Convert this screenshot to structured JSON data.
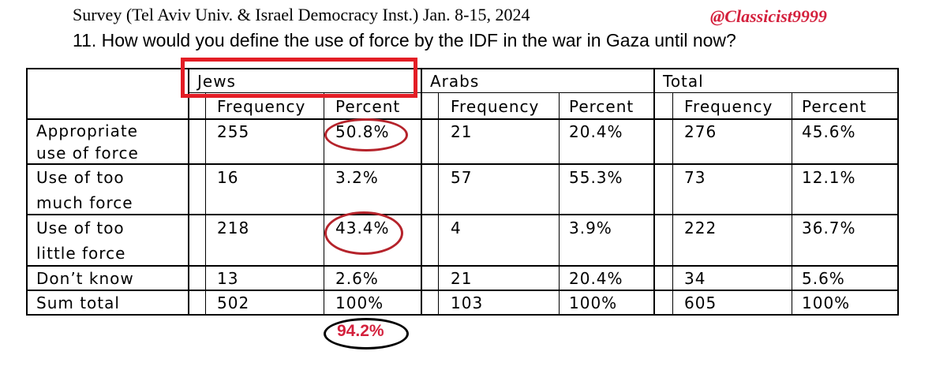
{
  "source": "Survey (Tel Aviv Univ. & Israel Democracy Inst.) Jan. 8-15, 2024",
  "handle": "@Classicist9999",
  "question": "11.  How would you define the use of force by the IDF in the war in Gaza until now?",
  "groups": [
    "Jews",
    "Arabs",
    "Total"
  ],
  "column_headers": {
    "frequency": "Frequency",
    "percent": "Percent"
  },
  "rows": [
    {
      "label": [
        "Appropriate",
        "use of force"
      ],
      "jews_freq": "255",
      "jews_pct": "50.8%",
      "arabs_freq": "21",
      "arabs_pct": "20.4%",
      "total_freq": "276",
      "total_pct": "45.6%"
    },
    {
      "label": [
        "Use of too",
        "much force"
      ],
      "jews_freq": "16",
      "jews_pct": "3.2%",
      "arabs_freq": "57",
      "arabs_pct": "55.3%",
      "total_freq": "73",
      "total_pct": "12.1%"
    },
    {
      "label": [
        "Use of too",
        "little force"
      ],
      "jews_freq": "218",
      "jews_pct": "43.4%",
      "arabs_freq": "4",
      "arabs_pct": "3.9%",
      "total_freq": "222",
      "total_pct": "36.7%"
    },
    {
      "label": [
        "Don’t know"
      ],
      "jews_freq": "13",
      "jews_pct": "2.6%",
      "arabs_freq": "21",
      "arabs_pct": "20.4%",
      "total_freq": "34",
      "total_pct": "5.6%"
    },
    {
      "label": [
        "Sum total"
      ],
      "jews_freq": "502",
      "jews_pct": "100%",
      "arabs_freq": "103",
      "arabs_pct": "100%",
      "total_freq": "605",
      "total_pct": "100%"
    }
  ],
  "annotation_total": "94.2%",
  "colors": {
    "annotation_red": "#d4213d",
    "box_red": "#e31d25",
    "ellipse_red": "#b5232b"
  }
}
